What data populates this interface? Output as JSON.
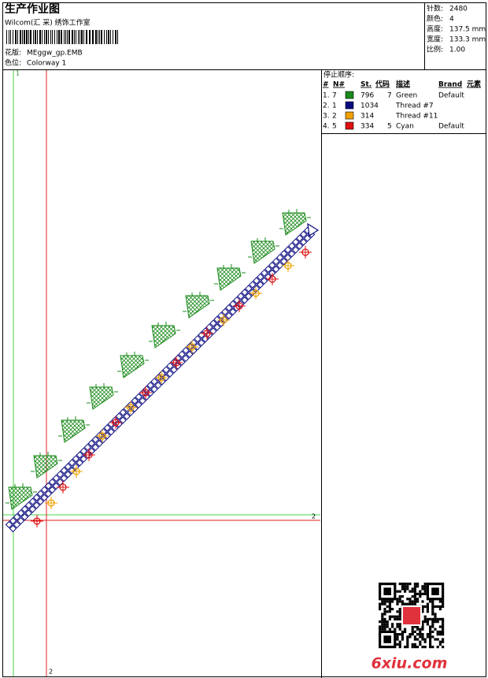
{
  "header": {
    "title": "生产作业图",
    "studio": "Wilcom(汇 采) 绣饰工作室",
    "design_label": "花版:",
    "design": "MEggw_gp.EMB",
    "colorway_label": "色位:",
    "colorway": "Colorway 1"
  },
  "info": [
    {
      "label": "针数:",
      "value": 2480
    },
    {
      "label": "颜色:",
      "value": 4
    },
    {
      "label": "高度:",
      "value": "137.5 mm"
    },
    {
      "label": "宽度:",
      "value": "133.3 mm"
    },
    {
      "label": "比例:",
      "value": "1.00"
    }
  ],
  "stop_sequence": {
    "title": "停止顺序:",
    "columns": {
      "index": "#",
      "n": "N#",
      "stitches": "St.",
      "code": "代码",
      "description": "描述",
      "brand": "Brand",
      "element": "元素"
    },
    "rows": [
      {
        "index": "1.",
        "n": 7,
        "color": "#1a8a1a",
        "stitches": 796,
        "code": 7,
        "description": "Green",
        "brand": "Default"
      },
      {
        "index": "2.",
        "n": 1,
        "color": "#0a0a80",
        "stitches": 1034,
        "description": "Thread #7"
      },
      {
        "index": "3.",
        "n": 2,
        "color": "#f0a000",
        "stitches": 314,
        "description": "Thread #11"
      },
      {
        "index": "4.",
        "n": 5,
        "color": "#e01010",
        "stitches": 334,
        "code": 5,
        "description": "Cyan",
        "brand": "Default"
      }
    ]
  },
  "guides": {
    "label_1": "1",
    "label_2": "2"
  },
  "watermark": "6xiu.com"
}
